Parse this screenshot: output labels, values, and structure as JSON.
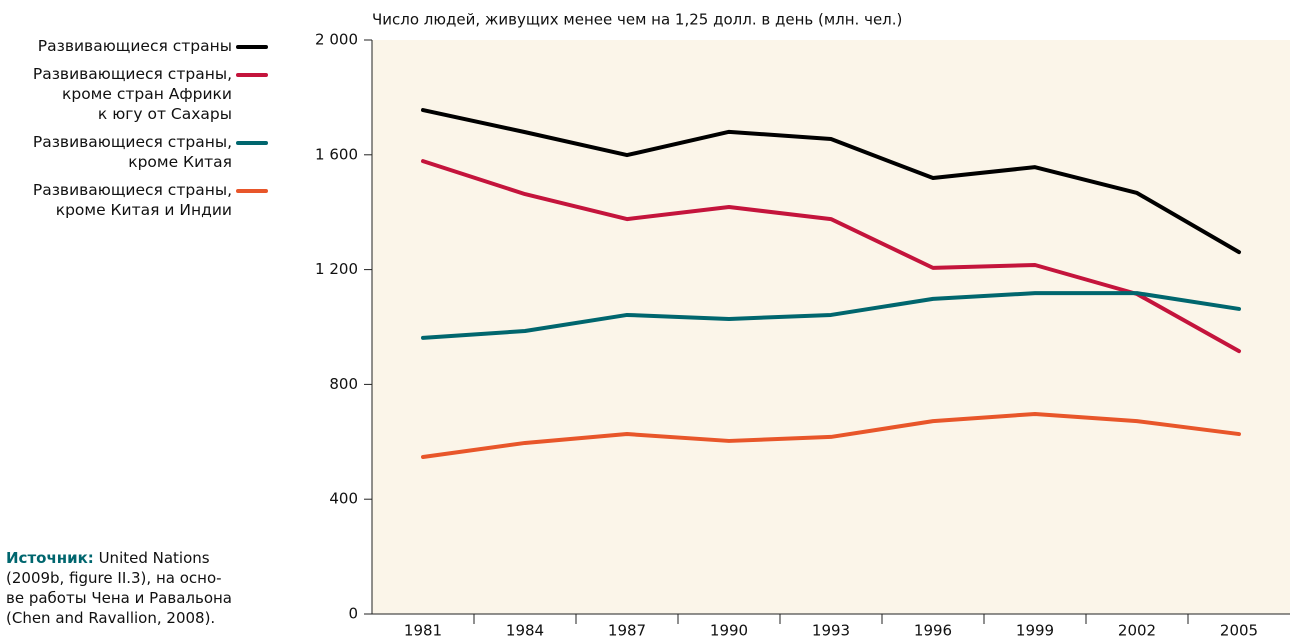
{
  "chart_data": {
    "type": "line",
    "title": "Число людей, живущих менее чем на 1,25 долл. в день (млн. чел.)",
    "categories": [
      "1981",
      "1984",
      "1987",
      "1990",
      "1993",
      "1996",
      "1999",
      "2002",
      "2005"
    ],
    "series": [
      {
        "name": "Развивающиеся страны",
        "color": "#000000",
        "values": [
          1756,
          1679,
          1599,
          1680,
          1655,
          1519,
          1557,
          1467,
          1261
        ]
      },
      {
        "name": "Развивающиеся страны,\nкроме стран Африки\nк югу от Сахары",
        "color": "#c4143c",
        "values": [
          1578,
          1463,
          1376,
          1418,
          1376,
          1206,
          1216,
          1115,
          916
        ]
      },
      {
        "name": "Развивающиеся страны,\nкроме Китая",
        "color": "#00666e",
        "values": [
          962,
          986,
          1042,
          1028,
          1042,
          1098,
          1118,
          1118,
          1063
        ]
      },
      {
        "name": "Развивающиеся страны,\nкроме Китая и Индии",
        "color": "#e8562a",
        "values": [
          547,
          596,
          627,
          603,
          617,
          672,
          697,
          672,
          627
        ]
      }
    ],
    "ylim": [
      0,
      2000
    ],
    "yticks": [
      0,
      400,
      800,
      {
        "value": 1200,
        "label": "1 200"
      },
      {
        "value": 1600,
        "label": "1 600"
      },
      {
        "value": 2000,
        "label": "2 000"
      }
    ],
    "background": "#fbf5e9",
    "legend": "top-left",
    "source_label": "Источник:",
    "source": "United Nations\n(2009b, figure II.3), на осно-\nве работы Чена и Равальона\n(Chen and Ravallion, 2008)."
  }
}
